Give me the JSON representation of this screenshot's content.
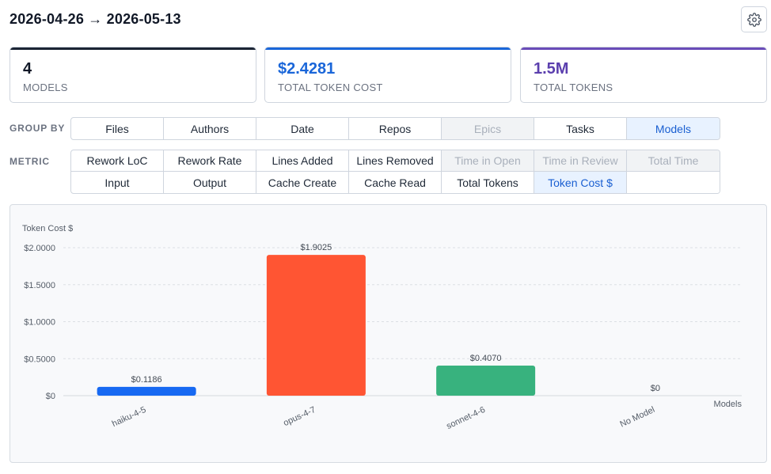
{
  "header": {
    "date_range": "2026-04-26 → 2026-05-13"
  },
  "settings": {
    "icon": "gear-icon"
  },
  "cards": [
    {
      "value": "4",
      "label": "MODELS",
      "accent": "#1b2434",
      "value_color": "#111827"
    },
    {
      "value": "$2.4281",
      "label": "TOTAL TOKEN COST",
      "accent": "#1a66d9",
      "value_color": "#1a66d9"
    },
    {
      "value": "1.5M",
      "label": "TOTAL TOKENS",
      "accent": "#6a4bb8",
      "value_color": "#5b3fae"
    }
  ],
  "group_by": {
    "label": "GROUP BY",
    "options": [
      {
        "label": "Files",
        "state": "normal"
      },
      {
        "label": "Authors",
        "state": "normal"
      },
      {
        "label": "Date",
        "state": "normal"
      },
      {
        "label": "Repos",
        "state": "normal"
      },
      {
        "label": "Epics",
        "state": "disabled"
      },
      {
        "label": "Tasks",
        "state": "normal"
      },
      {
        "label": "Models",
        "state": "active"
      }
    ]
  },
  "metric": {
    "label": "METRIC",
    "options": [
      {
        "label": "Rework LoC",
        "state": "normal"
      },
      {
        "label": "Rework Rate",
        "state": "normal"
      },
      {
        "label": "Lines Added",
        "state": "normal"
      },
      {
        "label": "Lines Removed",
        "state": "normal"
      },
      {
        "label": "Time in Open",
        "state": "disabled"
      },
      {
        "label": "Time in Review",
        "state": "disabled"
      },
      {
        "label": "Total Time",
        "state": "disabled"
      },
      {
        "label": "Input",
        "state": "normal"
      },
      {
        "label": "Output",
        "state": "normal"
      },
      {
        "label": "Cache Create",
        "state": "normal"
      },
      {
        "label": "Cache Read",
        "state": "normal"
      },
      {
        "label": "Total Tokens",
        "state": "normal"
      },
      {
        "label": "Token Cost $",
        "state": "active"
      },
      {
        "label": "",
        "state": "empty"
      }
    ]
  },
  "chart_data": {
    "type": "bar",
    "ylabel": "Token Cost $",
    "xlabel": "Models",
    "categories": [
      "haiku-4-5",
      "opus-4-7",
      "sonnet-4-6",
      "No Model"
    ],
    "values": [
      0.1186,
      1.9025,
      0.407,
      0
    ],
    "value_labels": [
      "$0.1186",
      "$1.9025",
      "$0.4070",
      "$0"
    ],
    "colors": [
      "#1769f2",
      "#ff5533",
      "#38b27e",
      "#999999"
    ],
    "ylim": [
      0,
      2.0
    ],
    "yticks": [
      0,
      0.5,
      1.0,
      1.5,
      2.0
    ],
    "ytick_labels": [
      "$0",
      "$0.5000",
      "$1.0000",
      "$1.5000",
      "$2.0000"
    ],
    "grid": true
  }
}
